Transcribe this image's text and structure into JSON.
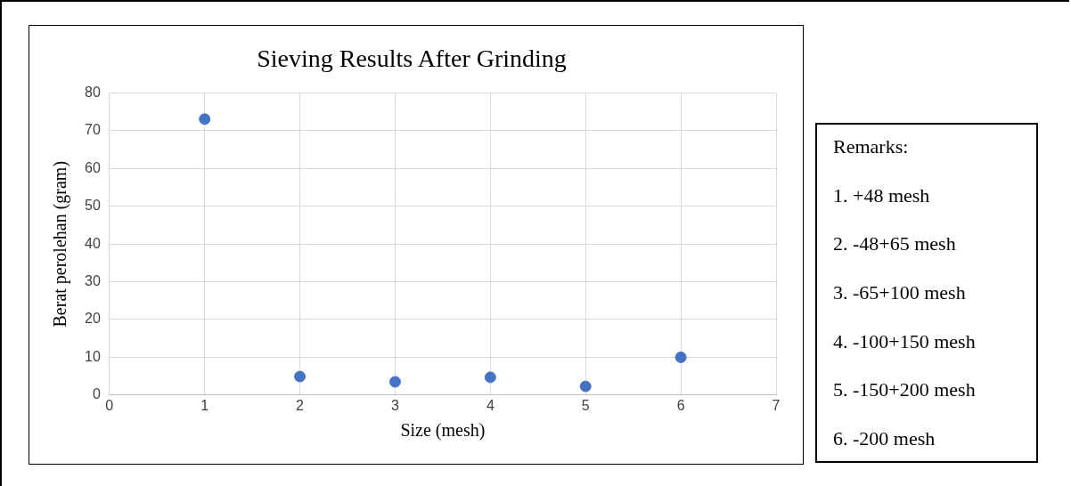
{
  "chart_data": {
    "type": "scatter",
    "title": "Sieving Results After Grinding",
    "xlabel": "Size (mesh)",
    "ylabel": "Berat perolehan (gram)",
    "x": [
      1,
      2,
      3,
      4,
      5,
      6
    ],
    "series": [
      {
        "color": "#4472c4",
        "values": [
          73.1,
          4.9,
          3.5,
          4.7,
          2.3,
          10.0
        ]
      }
    ],
    "xlim": [
      0,
      7
    ],
    "xticks": [
      0,
      1,
      2,
      3,
      4,
      5,
      6,
      7
    ],
    "ylim": [
      0,
      80
    ],
    "yticks": [
      0,
      10,
      20,
      30,
      40,
      50,
      60,
      70,
      80
    ],
    "grid": true,
    "legend": false,
    "marker": "circle",
    "annotations": [
      "Remarks:",
      "1. +48 mesh",
      "2. -48+65 mesh",
      "3. -65+100 mesh",
      "4. -100+150 mesh",
      "5. -150+200 mesh",
      "6. -200 mesh"
    ]
  }
}
